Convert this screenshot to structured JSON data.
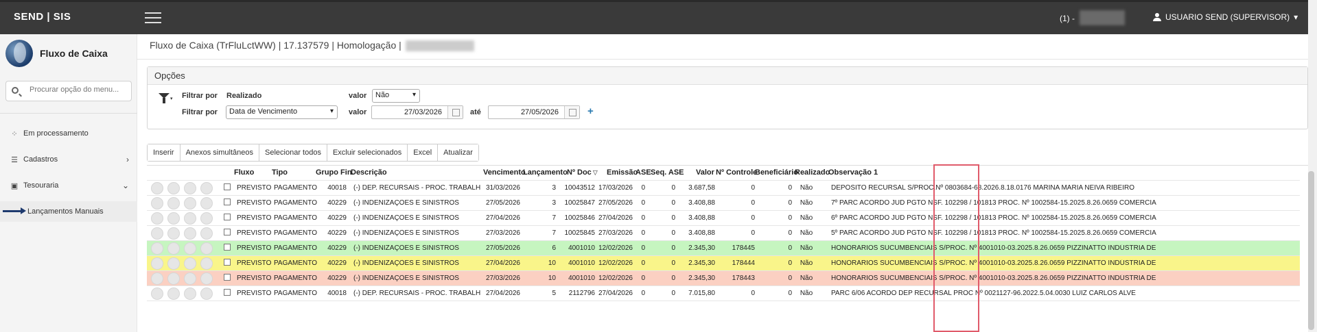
{
  "topbar": {
    "brand": "SEND  |  SIS",
    "company": "(1) -",
    "user": "USUARIO SEND (SUPERVISOR)"
  },
  "sidebar": {
    "app_title": "Fluxo de Caixa",
    "search_placeholder": "Procurar opção do menu...",
    "items": [
      {
        "label": "Em processamento",
        "icon": "spinner-icon"
      },
      {
        "label": "Cadastros",
        "icon": "list-icon",
        "chevron": "›"
      },
      {
        "label": "Tesouraria",
        "icon": "money-icon",
        "chevron": "⌄"
      },
      {
        "label": "Lançamentos Manuais",
        "icon": "arrow-icon"
      }
    ]
  },
  "breadcrumb": "Fluxo de Caixa (TrFluLctWW) | 17.137579 | Homologação |",
  "options": {
    "title": "Opções",
    "filter1": {
      "label": "Filtrar por",
      "field": "Realizado",
      "value_label": "valor",
      "value": "Não"
    },
    "filter2": {
      "label": "Filtrar por",
      "field": "Data de Vencimento",
      "value_label": "valor",
      "date_from": "27/03/2026",
      "until_label": "até",
      "date_to": "27/05/2026"
    }
  },
  "buttons": [
    "Inserir",
    "Anexos simultâneos",
    "Selecionar todos",
    "Excluir selecionados",
    "Excel",
    "Atualizar"
  ],
  "grid": {
    "headers": {
      "fluxo": "Fluxo",
      "tipo": "Tipo",
      "grupo": "Grupo Fin.",
      "descricao": "Descrição",
      "vencimento": "Vencimento",
      "lancamento": "Lançamento",
      "ndoc": "Nº Doc",
      "emissao": "Emissão",
      "ase": "ASE",
      "seqase": "Seq. ASE",
      "valor": "Valor",
      "ncontrole": "Nº Controle",
      "beneficiario": "Beneficiário",
      "realizado": "Realizado",
      "obs": "Observação 1"
    },
    "rows": [
      {
        "fluxo": "PREVISTO",
        "tipo": "PAGAMENTO",
        "grupo": "40018",
        "descricao": "(-) DEP. RECURSAIS - PROC. TRABALHISTA",
        "vencimento": "31/03/2026",
        "lancamento": "3",
        "ndoc": "10043512",
        "emissao": "17/03/2026",
        "ase": "0",
        "seqase": "0",
        "valor": "3.687,58",
        "ncontrole": "0",
        "beneficiario": "0",
        "realizado": "Não",
        "obs": "DEPÓSITO RECURSAL S/PROC.Nº 0803684-68.2026.8.18.0176 MARINA MARIA NEIVA RIBEIRO",
        "bg": "#ffffff"
      },
      {
        "fluxo": "PREVISTO",
        "tipo": "PAGAMENTO",
        "grupo": "40229",
        "descricao": "(-) INDENIZAÇÕES E SINISTROS",
        "vencimento": "27/05/2026",
        "lancamento": "3",
        "ndoc": "10025847",
        "emissao": "27/05/2026",
        "ase": "0",
        "seqase": "0",
        "valor": "3.408,88",
        "ncontrole": "0",
        "beneficiario": "0",
        "realizado": "Não",
        "obs": "7º PARC ACORDO JUD PGTO NSF. 102298 / 101813 PROC. Nº 1002584-15.2025.8.26.0659 COMERCIA",
        "bg": "#ffffff"
      },
      {
        "fluxo": "PREVISTO",
        "tipo": "PAGAMENTO",
        "grupo": "40229",
        "descricao": "(-) INDENIZAÇÕES E SINISTROS",
        "vencimento": "27/04/2026",
        "lancamento": "7",
        "ndoc": "10025846",
        "emissao": "27/04/2026",
        "ase": "0",
        "seqase": "0",
        "valor": "3.408,88",
        "ncontrole": "0",
        "beneficiario": "0",
        "realizado": "Não",
        "obs": "6º PARC ACORDO JUD PGTO NSF. 102298 / 101813 PROC. Nº 1002584-15.2025.8.26.0659 COMERCIA",
        "bg": "#ffffff"
      },
      {
        "fluxo": "PREVISTO",
        "tipo": "PAGAMENTO",
        "grupo": "40229",
        "descricao": "(-) INDENIZAÇÕES E SINISTROS",
        "vencimento": "27/03/2026",
        "lancamento": "7",
        "ndoc": "10025845",
        "emissao": "27/03/2026",
        "ase": "0",
        "seqase": "0",
        "valor": "3.408,88",
        "ncontrole": "0",
        "beneficiario": "0",
        "realizado": "Não",
        "obs": "5º PARC ACORDO JUD PGTO NSF. 102298 / 101813 PROC. Nº 1002584-15.2025.8.26.0659 COMERCIA",
        "bg": "#ffffff"
      },
      {
        "fluxo": "PREVISTO",
        "tipo": "PAGAMENTO",
        "grupo": "40229",
        "descricao": "(-) INDENIZAÇÕES E SINISTROS",
        "vencimento": "27/05/2026",
        "lancamento": "6",
        "ndoc": "4001010",
        "emissao": "12/02/2026",
        "ase": "0",
        "seqase": "0",
        "valor": "2.345,30",
        "ncontrole": "178445",
        "beneficiario": "0",
        "realizado": "Não",
        "obs": "HONORARIOS SUCUMBENCIAIS S/PROC. Nº 4001010-03.2025.8.26.0659 PIZZINATTO INDÚSTRIA DE",
        "bg": "#c6f5c0"
      },
      {
        "fluxo": "PREVISTO",
        "tipo": "PAGAMENTO",
        "grupo": "40229",
        "descricao": "(-) INDENIZAÇÕES E SINISTROS",
        "vencimento": "27/04/2026",
        "lancamento": "10",
        "ndoc": "4001010",
        "emissao": "12/02/2026",
        "ase": "0",
        "seqase": "0",
        "valor": "2.345,30",
        "ncontrole": "178444",
        "beneficiario": "0",
        "realizado": "Não",
        "obs": "HONORARIOS SUCUMBENCIAIS S/PROC. Nº 4001010-03.2025.8.26.0659 PIZZINATTO INDÚSTRIA DE",
        "bg": "#f9f58a"
      },
      {
        "fluxo": "PREVISTO",
        "tipo": "PAGAMENTO",
        "grupo": "40229",
        "descricao": "(-) INDENIZAÇÕES E SINISTROS",
        "vencimento": "27/03/2026",
        "lancamento": "10",
        "ndoc": "4001010",
        "emissao": "12/02/2026",
        "ase": "0",
        "seqase": "0",
        "valor": "2.345,30",
        "ncontrole": "178443",
        "beneficiario": "0",
        "realizado": "Não",
        "obs": "HONORARIOS SUCUMBENCIAIS S/PROC. Nº 4001010-03.2025.8.26.0659 PIZZINATTO INDÚSTRIA DE",
        "bg": "#fbd0c2"
      },
      {
        "fluxo": "PREVISTO",
        "tipo": "PAGAMENTO",
        "grupo": "40018",
        "descricao": "(-) DEP. RECURSAIS - PROC. TRABALHISTA",
        "vencimento": "27/04/2026",
        "lancamento": "5",
        "ndoc": "2112796",
        "emissao": "27/04/2026",
        "ase": "0",
        "seqase": "0",
        "valor": "7.015,80",
        "ncontrole": "0",
        "beneficiario": "0",
        "realizado": "Não",
        "obs": "PARC 6/06 ACORDO DEP RECURSAL PROC Nº 0021127-96.2022.5.04.0030 LUIZ CARLOS ALVE",
        "bg": "#ffffff"
      }
    ]
  },
  "colors": {
    "topbar": "#3a3a3a",
    "accent": "#2a7ab0",
    "highlight": "#e05a6a"
  }
}
